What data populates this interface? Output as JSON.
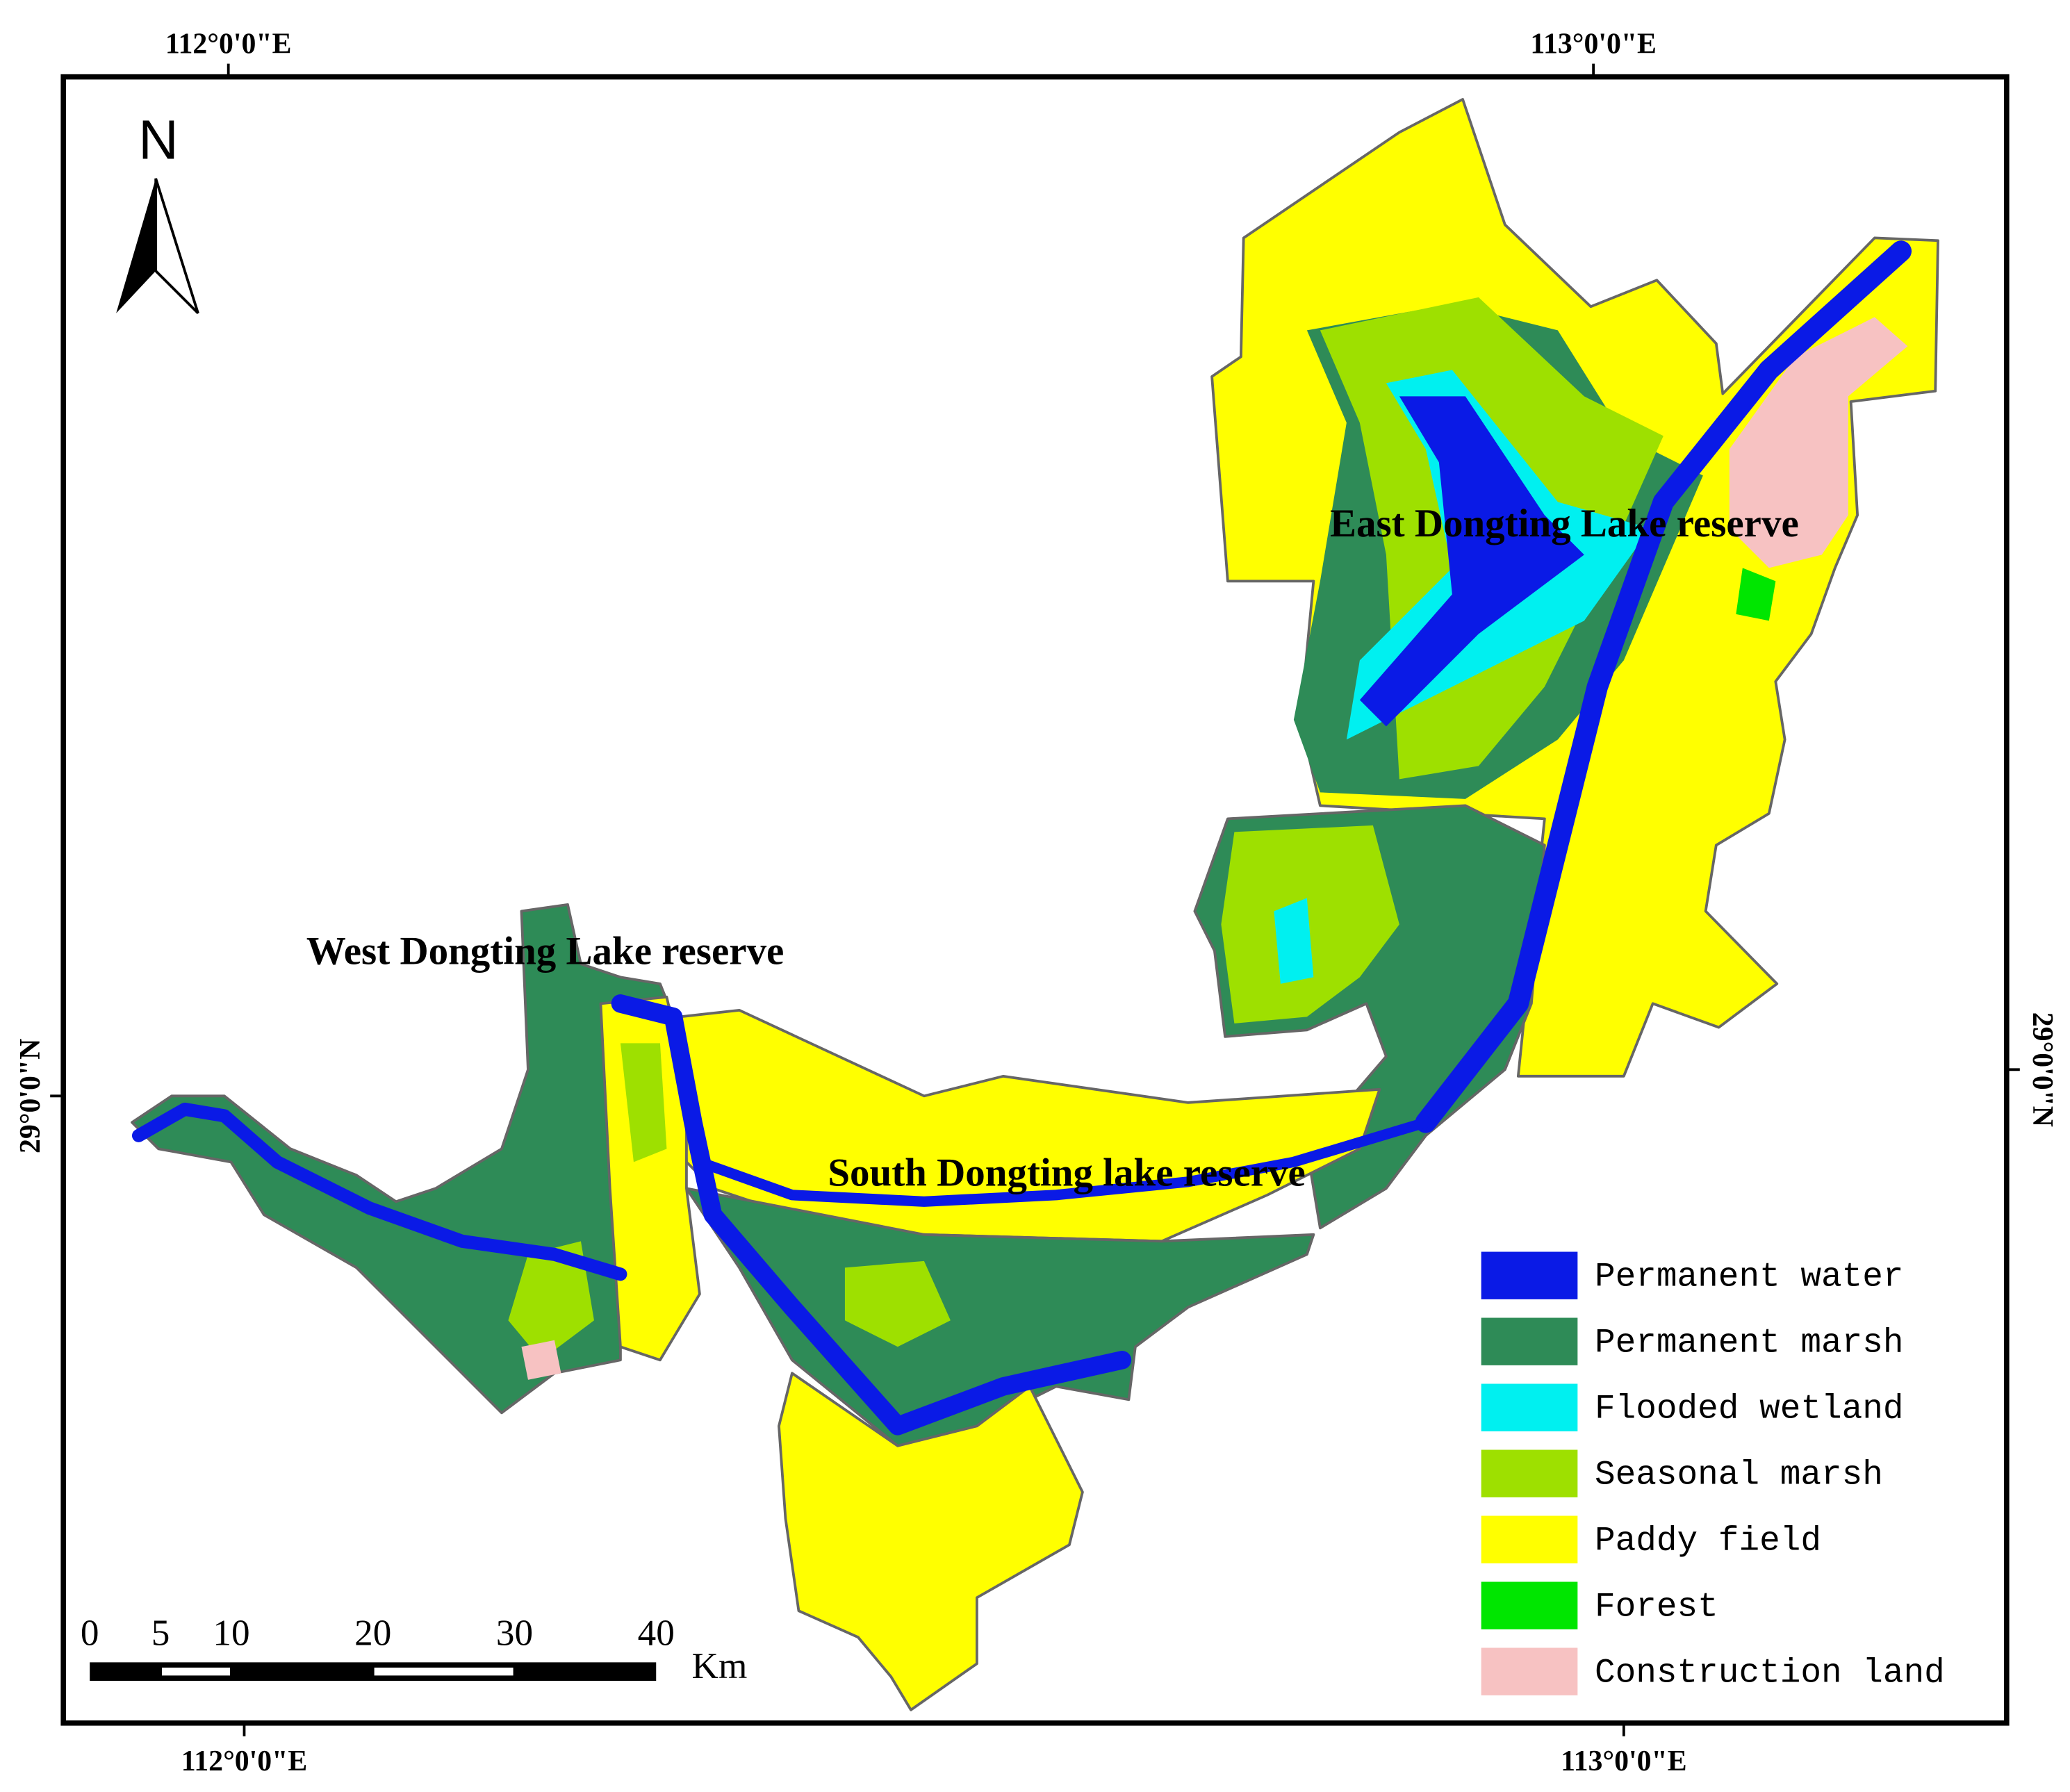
{
  "map": {
    "graticule": {
      "top": [
        "112°0'0\"E",
        "113°0'0\"E"
      ],
      "bottom": [
        "112°0'0\"E",
        "113°0'0\"E"
      ],
      "left": "29°0'0\"N",
      "right": "29°0'0\"N"
    },
    "north_label": "N",
    "regions": [
      "East Dongting Lake reserve",
      "West Dongting Lake reserve",
      "South Dongting lake reserve"
    ],
    "legend": [
      {
        "label": "Permanent water",
        "color": "#0a1ae6"
      },
      {
        "label": "Permanent marsh",
        "color": "#2e8b57"
      },
      {
        "label": "Flooded wetland",
        "color": "#00f0f0"
      },
      {
        "label": "Seasonal marsh",
        "color": "#9ee000"
      },
      {
        "label": "Paddy field",
        "color": "#ffff00"
      },
      {
        "label": "Forest",
        "color": "#00e600"
      },
      {
        "label": "Construction land",
        "color": "#f7c2c2"
      }
    ],
    "scale_bar": {
      "ticks": [
        0,
        5,
        10,
        20,
        30,
        40
      ],
      "unit": "Km"
    }
  }
}
